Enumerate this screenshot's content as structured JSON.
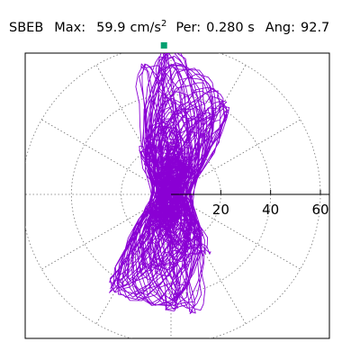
{
  "header": {
    "station": "SBEB",
    "max_label": "Max:",
    "max_value": "59.9",
    "max_unit": "cm/s",
    "max_unit_exp": "2",
    "period_label": "Per:",
    "period_value": "0.280 s",
    "angle_label": "Ang:",
    "angle_value": "92.7"
  },
  "chart_data": {
    "type": "scatter",
    "subtype": "polar-particle-motion",
    "title": "",
    "units": "cm/s^2",
    "radial_range": [
      0,
      60
    ],
    "radial_ticks": [
      20,
      40,
      60
    ],
    "rings": [
      20,
      40,
      60
    ],
    "spokes_every_deg": 30,
    "grid": true,
    "max_amplitude": 59.9,
    "max_angle_deg": 92.7,
    "period_s": 0.28,
    "max_marker": {
      "angle_deg": 92.7,
      "radius": 59.9
    },
    "colors": {
      "trace": "#8a00d4",
      "marker": "#00a070",
      "grid": "#777777"
    },
    "dominant_axis_deg": 93,
    "trace_envelope": [
      {
        "angle_deg": 0,
        "radius": 24
      },
      {
        "angle_deg": 30,
        "radius": 27
      },
      {
        "angle_deg": 60,
        "radius": 42
      },
      {
        "angle_deg": 90,
        "radius": 58
      },
      {
        "angle_deg": 120,
        "radius": 40
      },
      {
        "angle_deg": 150,
        "radius": 25
      },
      {
        "angle_deg": 180,
        "radius": 23
      },
      {
        "angle_deg": 210,
        "radius": 24
      },
      {
        "angle_deg": 240,
        "radius": 45
      },
      {
        "angle_deg": 270,
        "radius": 45
      },
      {
        "angle_deg": 300,
        "radius": 48
      },
      {
        "angle_deg": 330,
        "radius": 28
      }
    ]
  }
}
